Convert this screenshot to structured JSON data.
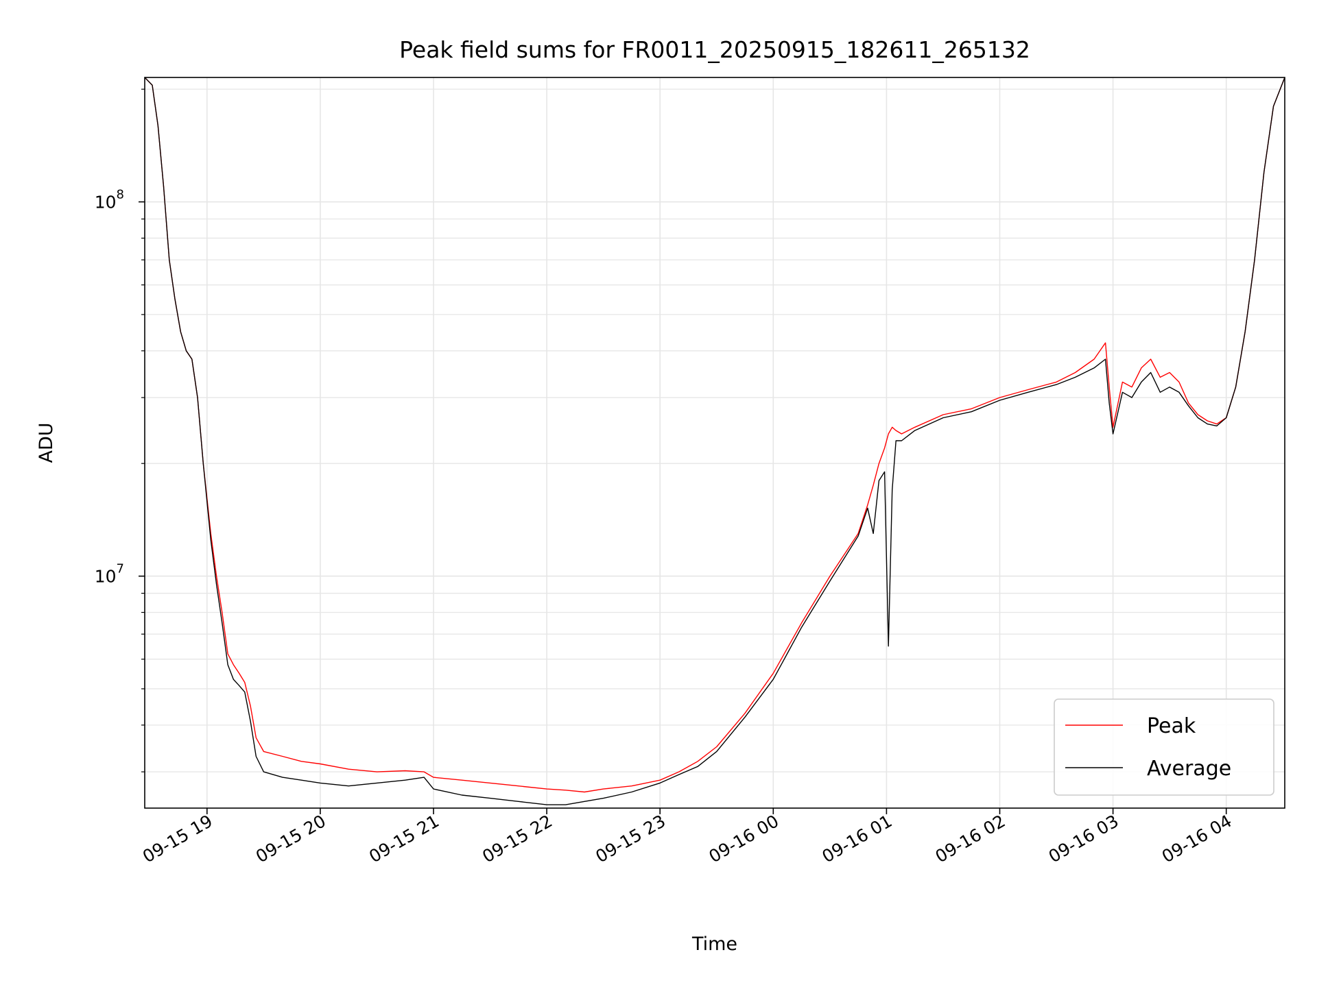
{
  "chart_data": {
    "type": "line",
    "title": "Peak field sums for FR0011_20250915_182611_265132",
    "xlabel": "Time",
    "ylabel": "ADU",
    "yscale": "log",
    "ylim": [
      2400000,
      215000000
    ],
    "xlim": [
      "2025-09-15 18:27",
      "2025-09-16 04:31"
    ],
    "grid": true,
    "legend": {
      "placement": "lower-right",
      "entries": [
        "Peak",
        "Average"
      ]
    },
    "x_ticks": [
      {
        "t": "2025-09-15 19:00",
        "label": "09-15 19"
      },
      {
        "t": "2025-09-15 20:00",
        "label": "09-15 20"
      },
      {
        "t": "2025-09-15 21:00",
        "label": "09-15 21"
      },
      {
        "t": "2025-09-15 22:00",
        "label": "09-15 22"
      },
      {
        "t": "2025-09-15 23:00",
        "label": "09-15 23"
      },
      {
        "t": "2025-09-16 00:00",
        "label": "09-16 00"
      },
      {
        "t": "2025-09-16 01:00",
        "label": "09-16 01"
      },
      {
        "t": "2025-09-16 02:00",
        "label": "09-16 02"
      },
      {
        "t": "2025-09-16 03:00",
        "label": "09-16 03"
      },
      {
        "t": "2025-09-16 04:00",
        "label": "09-16 04"
      }
    ],
    "y_ticks": [
      {
        "value": 10000000,
        "base": "10",
        "exp": "7"
      },
      {
        "value": 100000000,
        "base": "10",
        "exp": "8"
      }
    ],
    "series": [
      {
        "name": "Peak",
        "color": "#ff0000",
        "x": [
          "2025-09-15 18:27",
          "2025-09-15 18:31",
          "2025-09-15 18:34",
          "2025-09-15 18:37",
          "2025-09-15 18:40",
          "2025-09-15 18:43",
          "2025-09-15 18:46",
          "2025-09-15 18:49",
          "2025-09-15 18:52",
          "2025-09-15 18:55",
          "2025-09-15 18:58",
          "2025-09-15 19:02",
          "2025-09-15 19:05",
          "2025-09-15 19:08",
          "2025-09-15 19:11",
          "2025-09-15 19:14",
          "2025-09-15 19:17",
          "2025-09-15 19:20",
          "2025-09-15 19:23",
          "2025-09-15 19:26",
          "2025-09-15 19:30",
          "2025-09-15 19:40",
          "2025-09-15 19:50",
          "2025-09-15 20:00",
          "2025-09-15 20:15",
          "2025-09-15 20:30",
          "2025-09-15 20:45",
          "2025-09-15 20:55",
          "2025-09-15 21:00",
          "2025-09-15 21:15",
          "2025-09-15 21:30",
          "2025-09-15 21:45",
          "2025-09-15 22:00",
          "2025-09-15 22:10",
          "2025-09-15 22:20",
          "2025-09-15 22:30",
          "2025-09-15 22:45",
          "2025-09-15 23:00",
          "2025-09-15 23:10",
          "2025-09-15 23:20",
          "2025-09-15 23:30",
          "2025-09-15 23:45",
          "2025-09-16 00:00",
          "2025-09-16 00:15",
          "2025-09-16 00:30",
          "2025-09-16 00:45",
          "2025-09-16 00:50",
          "2025-09-16 00:53",
          "2025-09-16 00:56",
          "2025-09-16 00:59",
          "2025-09-16 01:01",
          "2025-09-16 01:03",
          "2025-09-16 01:05",
          "2025-09-16 01:08",
          "2025-09-16 01:15",
          "2025-09-16 01:30",
          "2025-09-16 01:45",
          "2025-09-16 02:00",
          "2025-09-16 02:15",
          "2025-09-16 02:30",
          "2025-09-16 02:40",
          "2025-09-16 02:50",
          "2025-09-16 02:56",
          "2025-09-16 02:58",
          "2025-09-16 03:00",
          "2025-09-16 03:05",
          "2025-09-16 03:10",
          "2025-09-16 03:15",
          "2025-09-16 03:20",
          "2025-09-16 03:25",
          "2025-09-16 03:30",
          "2025-09-16 03:35",
          "2025-09-16 03:40",
          "2025-09-16 03:45",
          "2025-09-16 03:50",
          "2025-09-16 03:55",
          "2025-09-16 04:00",
          "2025-09-16 04:05",
          "2025-09-16 04:10",
          "2025-09-16 04:15",
          "2025-09-16 04:20",
          "2025-09-16 04:25",
          "2025-09-16 04:31"
        ],
        "values": [
          215000000,
          205000000,
          160000000,
          110000000,
          70000000,
          55000000,
          45000000,
          40000000,
          38000000,
          30000000,
          20000000,
          13000000,
          10000000,
          8000000,
          6200000,
          5800000,
          5500000,
          5200000,
          4500000,
          3700000,
          3400000,
          3300000,
          3200000,
          3150000,
          3050000,
          3000000,
          3020000,
          3000000,
          2900000,
          2850000,
          2800000,
          2750000,
          2700000,
          2680000,
          2650000,
          2700000,
          2750000,
          2850000,
          3000000,
          3200000,
          3500000,
          4300000,
          5500000,
          7500000,
          10000000,
          13000000,
          15500000,
          17500000,
          20000000,
          22000000,
          24000000,
          25000000,
          24500000,
          24000000,
          25000000,
          27000000,
          28000000,
          30000000,
          31500000,
          33000000,
          35000000,
          38000000,
          42000000,
          32000000,
          25000000,
          33000000,
          32000000,
          36000000,
          38000000,
          34000000,
          35000000,
          33000000,
          29000000,
          27000000,
          26000000,
          25500000,
          26500000,
          32000000,
          45000000,
          70000000,
          120000000,
          180000000,
          215000000
        ]
      },
      {
        "name": "Average",
        "color": "#000000",
        "x": [
          "2025-09-15 18:27",
          "2025-09-15 18:31",
          "2025-09-15 18:34",
          "2025-09-15 18:37",
          "2025-09-15 18:40",
          "2025-09-15 18:43",
          "2025-09-15 18:46",
          "2025-09-15 18:49",
          "2025-09-15 18:52",
          "2025-09-15 18:55",
          "2025-09-15 18:58",
          "2025-09-15 19:02",
          "2025-09-15 19:05",
          "2025-09-15 19:08",
          "2025-09-15 19:11",
          "2025-09-15 19:14",
          "2025-09-15 19:17",
          "2025-09-15 19:20",
          "2025-09-15 19:23",
          "2025-09-15 19:26",
          "2025-09-15 19:30",
          "2025-09-15 19:40",
          "2025-09-15 19:50",
          "2025-09-15 20:00",
          "2025-09-15 20:15",
          "2025-09-15 20:30",
          "2025-09-15 20:45",
          "2025-09-15 20:55",
          "2025-09-15 21:00",
          "2025-09-15 21:15",
          "2025-09-15 21:30",
          "2025-09-15 21:45",
          "2025-09-15 22:00",
          "2025-09-15 22:10",
          "2025-09-15 22:20",
          "2025-09-15 22:30",
          "2025-09-15 22:45",
          "2025-09-15 23:00",
          "2025-09-15 23:10",
          "2025-09-15 23:20",
          "2025-09-15 23:30",
          "2025-09-15 23:45",
          "2025-09-16 00:00",
          "2025-09-16 00:15",
          "2025-09-16 00:30",
          "2025-09-16 00:45",
          "2025-09-16 00:50",
          "2025-09-16 00:53",
          "2025-09-16 00:56",
          "2025-09-16 00:59",
          "2025-09-16 01:01",
          "2025-09-16 01:03",
          "2025-09-16 01:05",
          "2025-09-16 01:08",
          "2025-09-16 01:15",
          "2025-09-16 01:30",
          "2025-09-16 01:45",
          "2025-09-16 02:00",
          "2025-09-16 02:15",
          "2025-09-16 02:30",
          "2025-09-16 02:40",
          "2025-09-16 02:50",
          "2025-09-16 02:56",
          "2025-09-16 02:58",
          "2025-09-16 03:00",
          "2025-09-16 03:05",
          "2025-09-16 03:10",
          "2025-09-16 03:15",
          "2025-09-16 03:20",
          "2025-09-16 03:25",
          "2025-09-16 03:30",
          "2025-09-16 03:35",
          "2025-09-16 03:40",
          "2025-09-16 03:45",
          "2025-09-16 03:50",
          "2025-09-16 03:55",
          "2025-09-16 04:00",
          "2025-09-16 04:05",
          "2025-09-16 04:10",
          "2025-09-16 04:15",
          "2025-09-16 04:20",
          "2025-09-16 04:25",
          "2025-09-16 04:31"
        ],
        "values": [
          215000000,
          205000000,
          160000000,
          110000000,
          70000000,
          55000000,
          45000000,
          40000000,
          38000000,
          30000000,
          20000000,
          12500000,
          9500000,
          7500000,
          5800000,
          5300000,
          5100000,
          4900000,
          4100000,
          3300000,
          3000000,
          2900000,
          2850000,
          2800000,
          2750000,
          2800000,
          2850000,
          2900000,
          2700000,
          2600000,
          2550000,
          2500000,
          2450000,
          2450000,
          2500000,
          2550000,
          2650000,
          2800000,
          2950000,
          3100000,
          3400000,
          4200000,
          5300000,
          7300000,
          9700000,
          12800000,
          15200000,
          13000000,
          18000000,
          19000000,
          6500000,
          17000000,
          23000000,
          23000000,
          24500000,
          26500000,
          27500000,
          29500000,
          31000000,
          32500000,
          34000000,
          36000000,
          38000000,
          29000000,
          24000000,
          31000000,
          30000000,
          33000000,
          35000000,
          31000000,
          32000000,
          31000000,
          28500000,
          26500000,
          25500000,
          25200000,
          26500000,
          32000000,
          45000000,
          70000000,
          120000000,
          180000000,
          215000000
        ]
      }
    ]
  }
}
